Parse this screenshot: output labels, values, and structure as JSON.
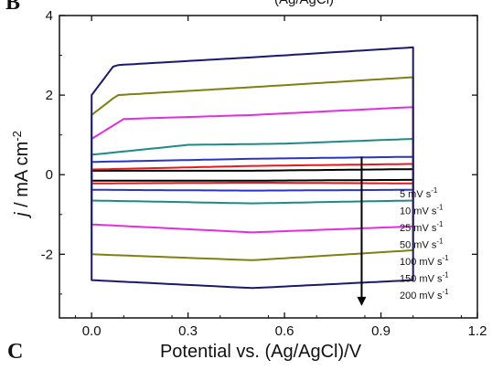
{
  "panel_labels": {
    "top": "B",
    "bottom": "C"
  },
  "top_cut_text": "(Ag/AgCl)",
  "chart_data": {
    "type": "line",
    "title": "",
    "xlabel": "Potential vs. (Ag/AgCl)/V",
    "ylabel": "j / mA cm",
    "ylabel_italic_part": "j",
    "ylabel_superscript": "-2",
    "xlim": [
      -0.1,
      1.2
    ],
    "ylim": [
      -3.6,
      4.0
    ],
    "x_ticks": [
      0.0,
      0.3,
      0.6,
      0.9,
      1.2
    ],
    "x_tick_labels": [
      "0.0",
      "0.3",
      "0.6",
      "0.9",
      "1.2"
    ],
    "y_ticks": [
      -2,
      0,
      2,
      4
    ],
    "y_tick_labels": [
      "-2",
      "0",
      "2",
      "4"
    ],
    "grid": false,
    "legend_position": "bottom-right",
    "arrow": {
      "x": 0.84,
      "y_start": 0.45,
      "y_end": -3.3,
      "direction": "down"
    },
    "series": [
      {
        "name": "5 mV s",
        "label_sup": "-1",
        "color": "#000000",
        "anodic": [
          [
            0.0,
            0.1
          ],
          [
            0.5,
            0.1
          ],
          [
            1.0,
            0.14
          ]
        ],
        "cathodic": [
          [
            0.0,
            -0.15
          ],
          [
            0.5,
            -0.15
          ],
          [
            1.0,
            -0.13
          ]
        ]
      },
      {
        "name": "10 mV s",
        "label_sup": "-1",
        "color": "#e41a1c",
        "anodic": [
          [
            0.0,
            0.13
          ],
          [
            0.5,
            0.22
          ],
          [
            1.0,
            0.27
          ]
        ],
        "cathodic": [
          [
            0.0,
            -0.22
          ],
          [
            0.5,
            -0.2
          ],
          [
            1.0,
            -0.22
          ]
        ]
      },
      {
        "name": "25 mV s",
        "label_sup": "-1",
        "color": "#2b33c9",
        "anodic": [
          [
            0.0,
            0.32
          ],
          [
            0.5,
            0.4
          ],
          [
            1.0,
            0.45
          ]
        ],
        "cathodic": [
          [
            0.0,
            -0.38
          ],
          [
            0.5,
            -0.4
          ],
          [
            1.0,
            -0.38
          ]
        ]
      },
      {
        "name": "50 mV s",
        "label_sup": "-1",
        "color": "#1f8a84",
        "anodic": [
          [
            0.0,
            0.5
          ],
          [
            0.3,
            0.75
          ],
          [
            0.6,
            0.78
          ],
          [
            1.0,
            0.9
          ]
        ],
        "cathodic": [
          [
            0.0,
            -0.65
          ],
          [
            0.5,
            -0.72
          ],
          [
            1.0,
            -0.65
          ]
        ]
      },
      {
        "name": "100 mV s",
        "label_sup": "-1",
        "color": "#e02ee0",
        "anodic": [
          [
            0.0,
            0.9
          ],
          [
            0.1,
            1.4
          ],
          [
            0.5,
            1.5
          ],
          [
            1.0,
            1.7
          ]
        ],
        "cathodic": [
          [
            0.0,
            -1.25
          ],
          [
            0.5,
            -1.45
          ],
          [
            1.0,
            -1.3
          ]
        ]
      },
      {
        "name": "150 mV s",
        "label_sup": "-1",
        "color": "#7f7f12",
        "anodic": [
          [
            0.0,
            1.5
          ],
          [
            0.08,
            2.0
          ],
          [
            0.5,
            2.2
          ],
          [
            1.0,
            2.45
          ]
        ],
        "cathodic": [
          [
            0.0,
            -2.0
          ],
          [
            0.5,
            -2.15
          ],
          [
            1.0,
            -1.9
          ]
        ]
      },
      {
        "name": "200 mV s",
        "label_sup": "-1",
        "color": "#191970",
        "anodic": [
          [
            0.0,
            2.0
          ],
          [
            0.07,
            2.75
          ],
          [
            0.5,
            2.95
          ],
          [
            1.0,
            3.2
          ]
        ],
        "cathodic": [
          [
            0.0,
            -2.65
          ],
          [
            0.5,
            -2.85
          ],
          [
            1.0,
            -2.65
          ]
        ]
      }
    ]
  }
}
